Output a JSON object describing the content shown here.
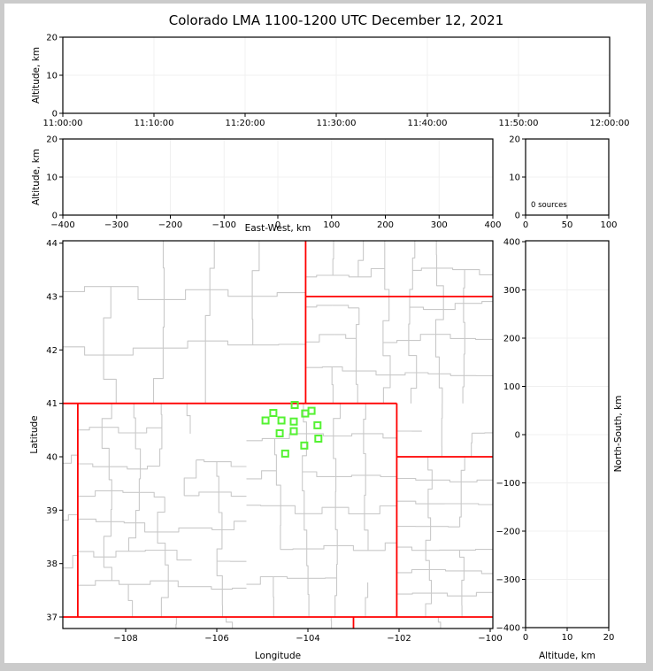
{
  "title": "Colorado LMA 1100-1200 UTC December 12, 2021",
  "colors": {
    "state_border": "#ff0000",
    "county_line": "#c9c9c9",
    "station": "#55f233",
    "grid": "#f0f0f0",
    "frame": "#000000",
    "background": "#ffffff",
    "page_border": "#cbcbcb"
  },
  "panels": {
    "time_height": {
      "ylabel": "Altitude, km",
      "yticks": [
        "0",
        "10",
        "20"
      ],
      "xticks": [
        "11:00:00",
        "11:10:00",
        "11:20:00",
        "11:30:00",
        "11:40:00",
        "11:50:00",
        "12:00:00"
      ]
    },
    "ew_height": {
      "xlabel": "East-West, km",
      "ylabel": "Altitude, km",
      "yticks": [
        "0",
        "10",
        "20"
      ],
      "xticks": [
        "−400",
        "−300",
        "−200",
        "−100",
        "0",
        "100",
        "200",
        "300",
        "400"
      ]
    },
    "histogram": {
      "annotation": "0 sources",
      "xticks": [
        "0",
        "50",
        "100"
      ],
      "yticks": [
        "0",
        "10",
        "20"
      ]
    },
    "map": {
      "xlabel": "Longitude",
      "ylabel": "Latitude",
      "xticks": [
        "−108",
        "−106",
        "−104",
        "−102",
        "−100"
      ],
      "yticks": [
        "37",
        "38",
        "39",
        "40",
        "41",
        "42",
        "43",
        "44"
      ],
      "state_borders": [
        [
          [
            -109.05,
            37
          ],
          [
            -109.05,
            41
          ]
        ],
        [
          [
            -109.38,
            41
          ],
          [
            -102.05,
            41
          ]
        ],
        [
          [
            -104.05,
            41
          ],
          [
            -104.05,
            44.05
          ]
        ],
        [
          [
            -104.05,
            43
          ],
          [
            -99.93,
            43
          ]
        ],
        [
          [
            -102.05,
            37
          ],
          [
            -102.05,
            41
          ]
        ],
        [
          [
            -102.05,
            40
          ],
          [
            -99.93,
            40
          ]
        ],
        [
          [
            -109.38,
            37
          ],
          [
            -99.93,
            37
          ]
        ],
        [
          [
            -103.0,
            36.78
          ],
          [
            -103.0,
            37
          ]
        ]
      ],
      "stations": [
        [
          -104.29,
          40.97
        ],
        [
          -104.76,
          40.82
        ],
        [
          -104.06,
          40.81
        ],
        [
          -103.92,
          40.86
        ],
        [
          -104.93,
          40.68
        ],
        [
          -104.58,
          40.68
        ],
        [
          -104.31,
          40.66
        ],
        [
          -103.79,
          40.59
        ],
        [
          -104.62,
          40.44
        ],
        [
          -104.31,
          40.48
        ],
        [
          -103.77,
          40.34
        ],
        [
          -104.08,
          40.21
        ],
        [
          -104.5,
          40.06
        ]
      ]
    },
    "ns_height": {
      "xlabel": "Altitude, km",
      "ylabel": "North-South, km",
      "xticks": [
        "0",
        "10",
        "20"
      ],
      "yticks": [
        "400",
        "300",
        "200",
        "100",
        "0",
        "−100",
        "−200",
        "−300",
        "−400"
      ]
    }
  },
  "chart_data": {
    "type": "scatter",
    "title": "Colorado LMA 1100-1200 UTC December 12, 2021",
    "source_count": 0,
    "panels": [
      {
        "id": "altitude_vs_time",
        "ylabel": "Altitude, km",
        "ylim": [
          0,
          20
        ],
        "xlim": [
          "11:00:00",
          "12:00:00"
        ],
        "xtick_interval": "10 minutes",
        "grid": true,
        "series": [
          {
            "name": "lma_sources",
            "points": []
          }
        ]
      },
      {
        "id": "altitude_vs_east_west",
        "xlabel": "East-West, km",
        "ylabel": "Altitude, km",
        "xlim": [
          -400,
          400
        ],
        "ylim": [
          0,
          20
        ],
        "grid": true,
        "series": [
          {
            "name": "lma_sources",
            "points": []
          }
        ]
      },
      {
        "id": "source_count_histogram",
        "xlim": [
          0,
          100
        ],
        "ylim": [
          0,
          20
        ],
        "annotation": "0 sources",
        "grid": true,
        "series": [
          {
            "name": "source_histogram",
            "points": []
          }
        ]
      },
      {
        "id": "plan_view_map",
        "xlabel": "Longitude",
        "ylabel": "Latitude",
        "xlim": [
          -109.38,
          -99.93
        ],
        "ylim": [
          36.78,
          44.05
        ],
        "grid": false,
        "series": [
          {
            "name": "lma_stations",
            "marker": "open-square",
            "color": "#55f233",
            "points": [
              [
                -104.29,
                40.97
              ],
              [
                -104.76,
                40.82
              ],
              [
                -104.06,
                40.81
              ],
              [
                -103.92,
                40.86
              ],
              [
                -104.93,
                40.68
              ],
              [
                -104.58,
                40.68
              ],
              [
                -104.31,
                40.66
              ],
              [
                -103.79,
                40.59
              ],
              [
                -104.62,
                40.44
              ],
              [
                -104.31,
                40.48
              ],
              [
                -103.77,
                40.34
              ],
              [
                -104.08,
                40.21
              ],
              [
                -104.5,
                40.06
              ]
            ]
          },
          {
            "name": "lma_sources",
            "points": []
          }
        ]
      },
      {
        "id": "altitude_vs_north_south",
        "xlabel": "Altitude, km",
        "ylabel": "North-South, km",
        "xlim": [
          0,
          20
        ],
        "ylim": [
          -400,
          400
        ],
        "grid": true,
        "series": [
          {
            "name": "lma_sources",
            "points": []
          }
        ]
      }
    ]
  }
}
